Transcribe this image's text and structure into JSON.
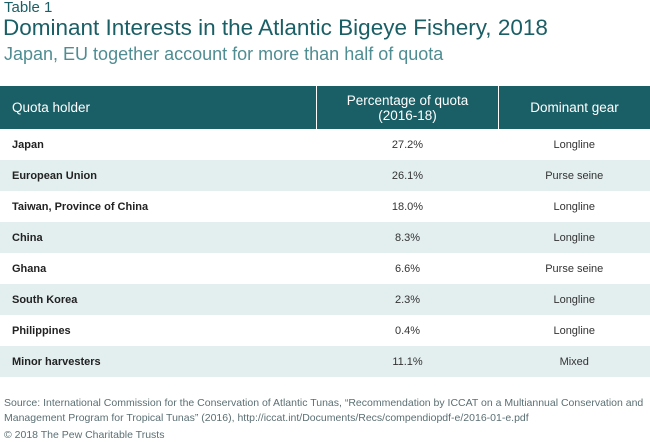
{
  "table_label": "Table 1",
  "title": "Dominant Interests in the Atlantic Bigeye Fishery, 2018",
  "subtitle": "Japan, EU together account for more than half of quota",
  "table": {
    "headers": {
      "holder": "Quota holder",
      "pct_line1": "Percentage of quota",
      "pct_line2": "(2016-18)",
      "gear": "Dominant gear"
    },
    "rows": [
      {
        "holder": "Japan",
        "pct": "27.2%",
        "gear": "Longline"
      },
      {
        "holder": "European Union",
        "pct": "26.1%",
        "gear": "Purse seine"
      },
      {
        "holder": "Taiwan, Province of China",
        "pct": "18.0%",
        "gear": "Longline"
      },
      {
        "holder": "China",
        "pct": "8.3%",
        "gear": "Longline"
      },
      {
        "holder": "Ghana",
        "pct": "6.6%",
        "gear": "Purse seine"
      },
      {
        "holder": "South Korea",
        "pct": "2.3%",
        "gear": "Longline"
      },
      {
        "holder": "Philippines",
        "pct": "0.4%",
        "gear": "Longline"
      },
      {
        "holder": "Minor harvesters",
        "pct": "11.1%",
        "gear": "Mixed"
      }
    ]
  },
  "source": "Source: International Commission for the Conservation of Atlantic Tunas, “Recommendation by ICCAT on a Multiannual Conservation and Management Program for Tropical Tunas” (2016), http://iccat.int/Documents/Recs/compendiopdf-e/2016-01-e.pdf",
  "copyright": "© 2018 The Pew Charitable Trusts",
  "colors": {
    "header_background": "#1b5f66",
    "title": "#1b5f66",
    "subtitle": "#4f8d92",
    "alternate_row": "#e3eeef"
  }
}
